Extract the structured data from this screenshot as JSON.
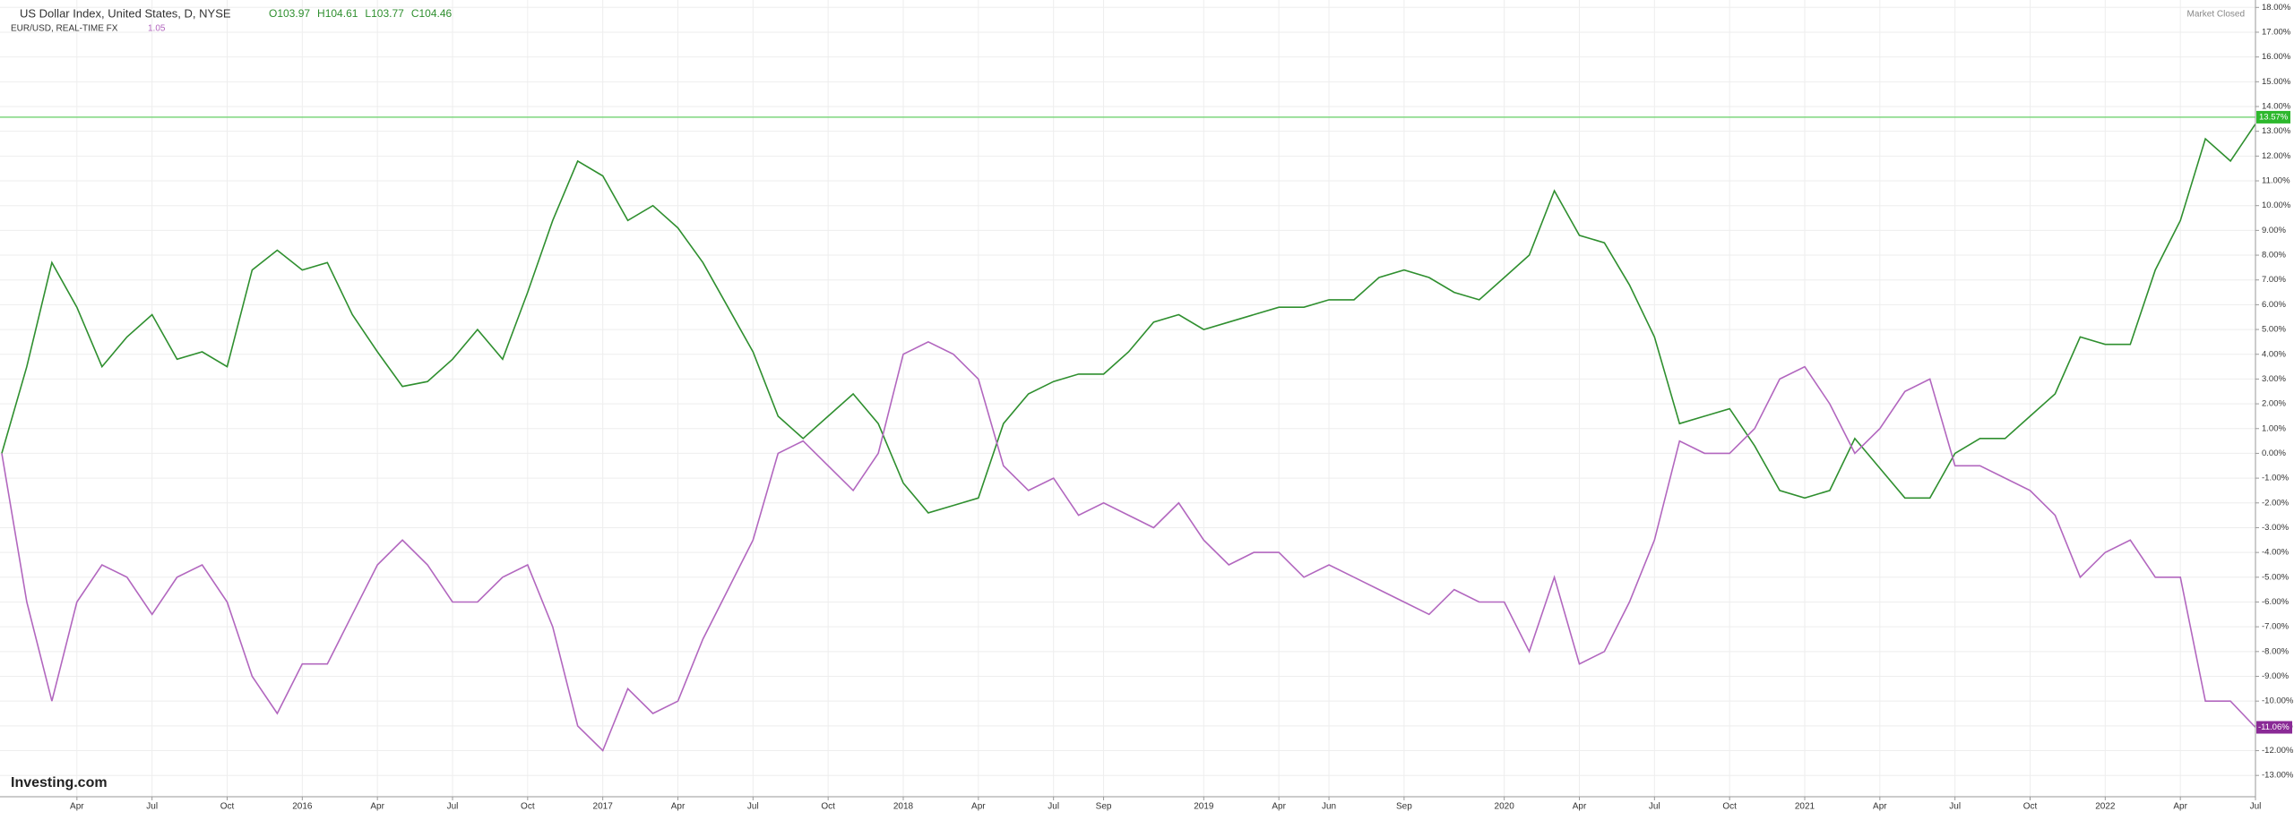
{
  "chart_data": {
    "type": "line",
    "status": "Market Closed",
    "watermark": "Investing.com",
    "x": [
      "2015-01",
      "2015-02",
      "2015-03",
      "2015-04",
      "2015-05",
      "2015-06",
      "2015-07",
      "2015-08",
      "2015-09",
      "2015-10",
      "2015-11",
      "2015-12",
      "2016-01",
      "2016-02",
      "2016-03",
      "2016-04",
      "2016-05",
      "2016-06",
      "2016-07",
      "2016-08",
      "2016-09",
      "2016-10",
      "2016-11",
      "2016-12",
      "2017-01",
      "2017-02",
      "2017-03",
      "2017-04",
      "2017-05",
      "2017-06",
      "2017-07",
      "2017-08",
      "2017-09",
      "2017-10",
      "2017-11",
      "2017-12",
      "2018-01",
      "2018-02",
      "2018-03",
      "2018-04",
      "2018-05",
      "2018-06",
      "2018-07",
      "2018-08",
      "2018-09",
      "2018-10",
      "2018-11",
      "2018-12",
      "2019-01",
      "2019-02",
      "2019-03",
      "2019-04",
      "2019-05",
      "2019-06",
      "2019-07",
      "2019-08",
      "2019-09",
      "2019-10",
      "2019-11",
      "2019-12",
      "2020-01",
      "2020-02",
      "2020-03",
      "2020-04",
      "2020-05",
      "2020-06",
      "2020-07",
      "2020-08",
      "2020-09",
      "2020-10",
      "2020-11",
      "2020-12",
      "2021-01",
      "2021-02",
      "2021-03",
      "2021-04",
      "2021-05",
      "2021-06",
      "2021-07",
      "2021-08",
      "2021-09",
      "2021-10",
      "2021-11",
      "2021-12",
      "2022-01",
      "2022-02",
      "2022-03",
      "2022-04",
      "2022-05",
      "2022-06",
      "2022-07"
    ],
    "series": [
      {
        "name": "US Dollar Index, United States, D, NYSE",
        "color": "#2f8f2f",
        "ohlc": [
          "O103.97",
          "H104.61",
          "L103.77",
          "C104.46"
        ],
        "values": [
          0,
          3.5,
          7.7,
          5.9,
          3.5,
          4.7,
          5.6,
          3.8,
          4.1,
          3.5,
          7.4,
          8.2,
          7.4,
          7.7,
          5.6,
          4.1,
          2.7,
          2.9,
          3.8,
          5.0,
          3.8,
          6.5,
          9.4,
          11.8,
          11.2,
          9.4,
          10.0,
          9.1,
          7.7,
          5.9,
          4.1,
          1.5,
          0.6,
          1.5,
          2.4,
          1.2,
          -1.2,
          -2.4,
          -2.1,
          -1.8,
          1.2,
          2.4,
          2.9,
          3.2,
          3.2,
          4.1,
          5.3,
          5.6,
          5.0,
          5.3,
          5.6,
          5.9,
          5.9,
          6.2,
          6.2,
          7.1,
          7.4,
          7.1,
          6.5,
          6.2,
          7.1,
          8.0,
          10.6,
          8.8,
          8.5,
          6.8,
          4.7,
          1.2,
          1.5,
          1.8,
          0.3,
          -1.5,
          -1.8,
          -1.5,
          0.6,
          -0.6,
          -1.8,
          -1.8,
          0,
          0.6,
          0.6,
          1.5,
          2.4,
          4.7,
          4.4,
          4.4,
          7.4,
          9.4,
          12.7,
          11.8,
          13.3
        ]
      },
      {
        "name": "EUR/USD, REAL-TIME FX",
        "color": "#b267bf",
        "last": 1.05,
        "end_label": "-11.06%",
        "values": [
          0,
          -6,
          -10,
          -6,
          -4.5,
          -5,
          -6.5,
          -5,
          -4.5,
          -6,
          -9,
          -10.5,
          -8.5,
          -8.5,
          -6.5,
          -4.5,
          -3.5,
          -4.5,
          -6,
          -6,
          -5,
          -4.5,
          -7,
          -11,
          -12,
          -9.5,
          -10.5,
          -10,
          -7.5,
          -5.5,
          -3.5,
          0,
          0.5,
          -0.5,
          -1.5,
          0,
          4,
          4.5,
          4,
          3,
          -0.5,
          -1.5,
          -1,
          -2.5,
          -2,
          -2.5,
          -3,
          -2,
          -3.5,
          -4.5,
          -4,
          -4,
          -5,
          -4.5,
          -5,
          -5.5,
          -6,
          -6.5,
          -5.5,
          -6,
          -6,
          -8,
          -5,
          -8.5,
          -8,
          -6,
          -3.5,
          0.5,
          0,
          0,
          1,
          3,
          3.5,
          2,
          0,
          1,
          2.5,
          3,
          -0.5,
          -0.5,
          -1,
          -1.5,
          -2.5,
          -5,
          -4,
          -3.5,
          -5,
          -5,
          -10,
          -10,
          -11.06
        ]
      }
    ],
    "reference_line": {
      "value": 13.57,
      "label": "13.57%",
      "color": "#7ed67e"
    },
    "xlim": [
      "2015-01",
      "2022-07"
    ],
    "xticks": [
      {
        "value": "2015-04",
        "label": "Apr"
      },
      {
        "value": "2015-07",
        "label": "Jul"
      },
      {
        "value": "2015-10",
        "label": "Oct"
      },
      {
        "value": "2016-01",
        "label": "2016"
      },
      {
        "value": "2016-04",
        "label": "Apr"
      },
      {
        "value": "2016-07",
        "label": "Jul"
      },
      {
        "value": "2016-10",
        "label": "Oct"
      },
      {
        "value": "2017-01",
        "label": "2017"
      },
      {
        "value": "2017-04",
        "label": "Apr"
      },
      {
        "value": "2017-07",
        "label": "Jul"
      },
      {
        "value": "2017-10",
        "label": "Oct"
      },
      {
        "value": "2018-01",
        "label": "2018"
      },
      {
        "value": "2018-04",
        "label": "Apr"
      },
      {
        "value": "2018-07",
        "label": "Jul"
      },
      {
        "value": "2018-09",
        "label": "Sep"
      },
      {
        "value": "2019-01",
        "label": "2019"
      },
      {
        "value": "2019-04",
        "label": "Apr"
      },
      {
        "value": "2019-06",
        "label": "Jun"
      },
      {
        "value": "2019-09",
        "label": "Sep"
      },
      {
        "value": "2020-01",
        "label": "2020"
      },
      {
        "value": "2020-04",
        "label": "Apr"
      },
      {
        "value": "2020-07",
        "label": "Jul"
      },
      {
        "value": "2020-10",
        "label": "Oct"
      },
      {
        "value": "2021-01",
        "label": "2021"
      },
      {
        "value": "2021-04",
        "label": "Apr"
      },
      {
        "value": "2021-07",
        "label": "Jul"
      },
      {
        "value": "2021-10",
        "label": "Oct"
      },
      {
        "value": "2022-01",
        "label": "2022"
      },
      {
        "value": "2022-04",
        "label": "Apr"
      },
      {
        "value": "2022-07",
        "label": "Jul"
      }
    ],
    "ylim": [
      -13.86,
      18.3
    ],
    "yticks": [
      {
        "value": 18,
        "label": "18.00%"
      },
      {
        "value": 17,
        "label": "17.00%"
      },
      {
        "value": 16,
        "label": "16.00%"
      },
      {
        "value": 15,
        "label": "15.00%"
      },
      {
        "value": 14,
        "label": "14.00%"
      },
      {
        "value": 13,
        "label": "13.00%"
      },
      {
        "value": 12,
        "label": "12.00%"
      },
      {
        "value": 11,
        "label": "11.00%"
      },
      {
        "value": 10,
        "label": "10.00%"
      },
      {
        "value": 9,
        "label": "9.00%"
      },
      {
        "value": 8,
        "label": "8.00%"
      },
      {
        "value": 7,
        "label": "7.00%"
      },
      {
        "value": 6,
        "label": "6.00%"
      },
      {
        "value": 5,
        "label": "5.00%"
      },
      {
        "value": 4,
        "label": "4.00%"
      },
      {
        "value": 3,
        "label": "3.00%"
      },
      {
        "value": 2,
        "label": "2.00%"
      },
      {
        "value": 1,
        "label": "1.00%"
      },
      {
        "value": 0,
        "label": "0.00%"
      },
      {
        "value": -1,
        "label": "-1.00%"
      },
      {
        "value": -2,
        "label": "-2.00%"
      },
      {
        "value": -3,
        "label": "-3.00%"
      },
      {
        "value": -4,
        "label": "-4.00%"
      },
      {
        "value": -5,
        "label": "-5.00%"
      },
      {
        "value": -6,
        "label": "-6.00%"
      },
      {
        "value": -7,
        "label": "-7.00%"
      },
      {
        "value": -8,
        "label": "-8.00%"
      },
      {
        "value": -9,
        "label": "-9.00%"
      },
      {
        "value": -10,
        "label": "-10.00%"
      },
      {
        "value": -11,
        "label": "-11.00%"
      },
      {
        "value": -12,
        "label": "-12.00%"
      },
      {
        "value": -13,
        "label": "-13.00%"
      }
    ],
    "grid": true
  }
}
